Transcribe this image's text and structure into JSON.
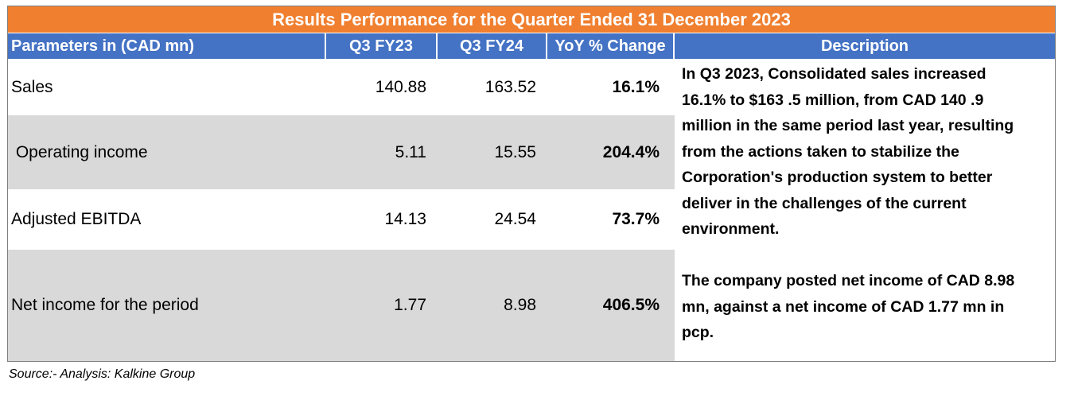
{
  "title": "Results Performance for the Quarter Ended 31 December  2023",
  "headers": {
    "parameters": "Parameters in (CAD mn)",
    "q3fy23": "Q3 FY23",
    "q3fy24": "Q3 FY24",
    "yoy": "YoY % Change",
    "description": "Description"
  },
  "rows": [
    {
      "label": "Sales",
      "q3fy23": "140.88",
      "q3fy24": "163.52",
      "yoy": "16.1%"
    },
    {
      "label": " Operating income",
      "q3fy23": "5.11",
      "q3fy24": "15.55",
      "yoy": "204.4%"
    },
    {
      "label": "Adjusted EBITDA",
      "q3fy23": "14.13",
      "q3fy24": "24.54",
      "yoy": "73.7%"
    },
    {
      "label": "Net income for the period",
      "q3fy23": "1.77",
      "q3fy24": "8.98",
      "yoy": "406.5%"
    }
  ],
  "descriptions": {
    "sales_lines": [
      "In Q3 2023, Consolidated sales increased",
      "16.1% to $163 .5 million, from CAD 140 .9",
      "million in the same period last year, resulting",
      "from the actions taken to stabilize the",
      "Corporation's production system to better",
      "deliver in the challenges of the current",
      "environment."
    ],
    "net_income_lines": [
      "The company posted net income of CAD 8.98",
      "mn, against a net income of CAD 1.77 mn in",
      "pcp."
    ]
  },
  "source": "Source:- Analysis: Kalkine Group",
  "colors": {
    "title_bg": "#f07f2f",
    "header_bg": "#4472c4",
    "row_shade": "#d9d9d9"
  }
}
